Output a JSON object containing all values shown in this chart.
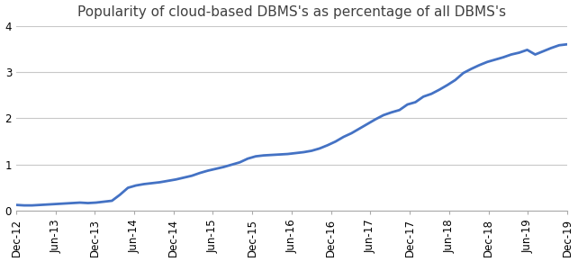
{
  "title": "Popularity of cloud-based DBMS's as percentage of all DBMS's",
  "line_color": "#4472C4",
  "background_color": "#ffffff",
  "grid_color": "#c8c8c8",
  "ylim": [
    0,
    4.0
  ],
  "yticks": [
    0,
    1,
    2,
    3,
    4
  ],
  "x_labels": [
    "Dec-12",
    "Jun-13",
    "Dec-13",
    "Jun-14",
    "Dec-14",
    "Jun-15",
    "Dec-15",
    "Jun-16",
    "Dec-16",
    "Jun-17",
    "Dec-17",
    "Jun-18",
    "Dec-18",
    "Jun-19",
    "Dec-19"
  ],
  "values": [
    0.13,
    0.12,
    0.12,
    0.13,
    0.14,
    0.15,
    0.16,
    0.17,
    0.18,
    0.17,
    0.18,
    0.2,
    0.22,
    0.35,
    0.5,
    0.55,
    0.58,
    0.6,
    0.62,
    0.65,
    0.68,
    0.72,
    0.76,
    0.82,
    0.87,
    0.91,
    0.95,
    1.0,
    1.05,
    1.13,
    1.18,
    1.2,
    1.21,
    1.22,
    1.23,
    1.25,
    1.27,
    1.3,
    1.35,
    1.42,
    1.5,
    1.6,
    1.68,
    1.78,
    1.88,
    1.98,
    2.07,
    2.13,
    2.18,
    2.3,
    2.35,
    2.47,
    2.53,
    2.62,
    2.72,
    2.83,
    2.98,
    3.07,
    3.15,
    3.22,
    3.27,
    3.32,
    3.38,
    3.42,
    3.48,
    3.38,
    3.45,
    3.52,
    3.58,
    3.6
  ],
  "figsize": [
    6.42,
    2.91
  ],
  "dpi": 100,
  "title_fontsize": 11,
  "tick_fontsize": 8.5,
  "line_width": 2.0
}
